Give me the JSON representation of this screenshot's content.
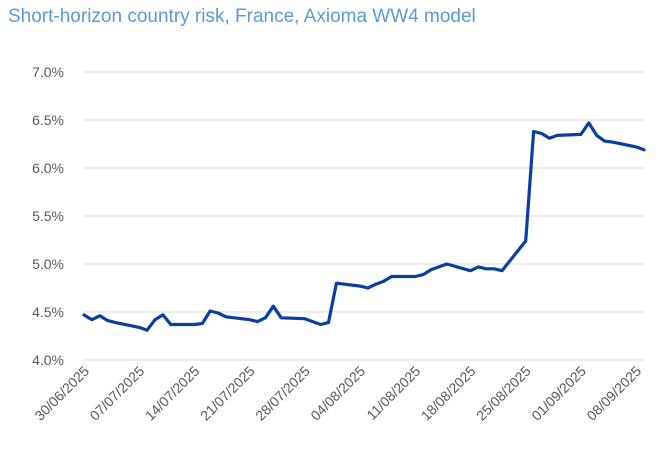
{
  "chart_data": {
    "type": "line",
    "title": "Short-horizon country risk, France, Axioma WW4 model",
    "xlabel": "",
    "ylabel": "",
    "x_tick_labels": [
      "30/06/2025",
      "07/07/2025",
      "14/07/2025",
      "21/07/2025",
      "28/07/2025",
      "04/08/2025",
      "11/08/2025",
      "18/08/2025",
      "25/08/2025",
      "01/09/2025",
      "08/09/2025"
    ],
    "y_tick_labels": [
      "4.0%",
      "4.5%",
      "5.0%",
      "5.5%",
      "6.0%",
      "6.5%",
      "7.0%"
    ],
    "ylim": [
      4.0,
      7.0
    ],
    "grid": true,
    "legend": "none",
    "series": [
      {
        "color": "#0b3ea0",
        "points": [
          [
            "30/06/2025",
            4.47
          ],
          [
            "01/07/2025",
            4.42
          ],
          [
            "02/07/2025",
            4.46
          ],
          [
            "03/07/2025",
            4.41
          ],
          [
            "04/07/2025",
            4.39
          ],
          [
            "07/07/2025",
            4.34
          ],
          [
            "08/07/2025",
            4.31
          ],
          [
            "09/07/2025",
            4.42
          ],
          [
            "10/07/2025",
            4.47
          ],
          [
            "11/07/2025",
            4.37
          ],
          [
            "14/07/2025",
            4.37
          ],
          [
            "15/07/2025",
            4.38
          ],
          [
            "16/07/2025",
            4.51
          ],
          [
            "17/07/2025",
            4.49
          ],
          [
            "18/07/2025",
            4.45
          ],
          [
            "21/07/2025",
            4.42
          ],
          [
            "22/07/2025",
            4.4
          ],
          [
            "23/07/2025",
            4.44
          ],
          [
            "24/07/2025",
            4.56
          ],
          [
            "25/07/2025",
            4.44
          ],
          [
            "28/07/2025",
            4.43
          ],
          [
            "29/07/2025",
            4.4
          ],
          [
            "30/07/2025",
            4.37
          ],
          [
            "31/07/2025",
            4.39
          ],
          [
            "01/08/2025",
            4.8
          ],
          [
            "04/08/2025",
            4.77
          ],
          [
            "05/08/2025",
            4.75
          ],
          [
            "06/08/2025",
            4.79
          ],
          [
            "07/08/2025",
            4.82
          ],
          [
            "08/08/2025",
            4.87
          ],
          [
            "11/08/2025",
            4.87
          ],
          [
            "12/08/2025",
            4.89
          ],
          [
            "13/08/2025",
            4.94
          ],
          [
            "14/08/2025",
            4.97
          ],
          [
            "15/08/2025",
            5.0
          ],
          [
            "18/08/2025",
            4.93
          ],
          [
            "19/08/2025",
            4.97
          ],
          [
            "20/08/2025",
            4.95
          ],
          [
            "21/08/2025",
            4.95
          ],
          [
            "22/08/2025",
            4.93
          ],
          [
            "25/08/2025",
            5.24
          ],
          [
            "26/08/2025",
            6.38
          ],
          [
            "27/08/2025",
            6.36
          ],
          [
            "28/08/2025",
            6.31
          ],
          [
            "29/08/2025",
            6.34
          ],
          [
            "01/09/2025",
            6.35
          ],
          [
            "02/09/2025",
            6.47
          ],
          [
            "03/09/2025",
            6.34
          ],
          [
            "04/09/2025",
            6.28
          ],
          [
            "05/09/2025",
            6.27
          ],
          [
            "08/09/2025",
            6.22
          ],
          [
            "09/09/2025",
            6.19
          ]
        ]
      }
    ]
  },
  "colors": {
    "title": "#5b9bd5",
    "line": "#0b3ea0",
    "grid": "#d9d9d9",
    "ticks": "#595959"
  }
}
